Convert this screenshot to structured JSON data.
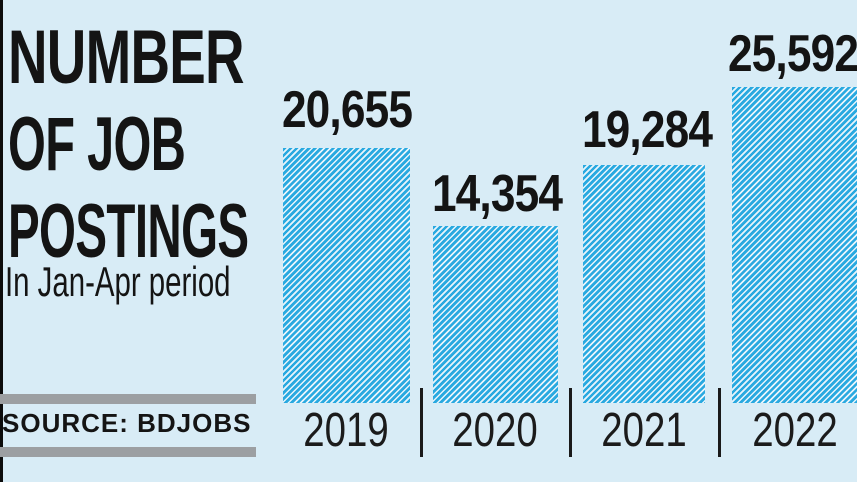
{
  "colors": {
    "background": "#d8ecf6",
    "bar_blue": "#29a9e0",
    "bar_stripe_light": "#e8f4fb",
    "text_black": "#141414",
    "source_divider_gray": "#9c9fa2"
  },
  "title": {
    "line1": "NUMBER",
    "line2": "OF JOB",
    "line3": "POSTINGS"
  },
  "subtitle": "In Jan-Apr period",
  "source_label": "SOURCE: BDJOBS",
  "chart_data": {
    "type": "bar",
    "title": "NUMBER OF JOB POSTINGS",
    "subtitle": "In Jan-Apr period",
    "source": "SOURCE: BDJOBS",
    "categories": [
      "2019",
      "2020",
      "2021",
      "2022"
    ],
    "values": [
      20655,
      14354,
      19284,
      25592
    ],
    "value_labels": [
      "20,655",
      "14,354",
      "19,284",
      "25,592"
    ],
    "ylim": [
      0,
      26000
    ],
    "grid": false,
    "legend": false,
    "bar_style": "diagonal-hatch",
    "orientation": "vertical"
  }
}
